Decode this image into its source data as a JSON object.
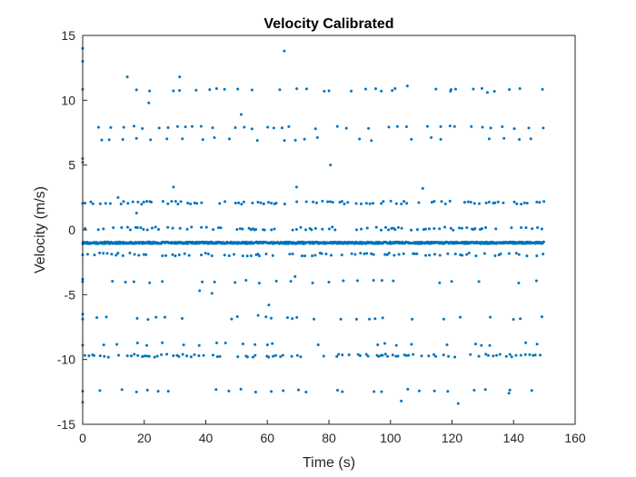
{
  "chart_data": {
    "type": "scatter",
    "title": "Velocity Calibrated",
    "xlabel": "Time (s)",
    "ylabel": "Velocity (m/s)",
    "xlim": [
      0,
      160
    ],
    "ylim": [
      -15,
      15
    ],
    "xticks": [
      0,
      20,
      40,
      60,
      80,
      100,
      120,
      140,
      160
    ],
    "yticks": [
      -15,
      -10,
      -5,
      0,
      5,
      10,
      15
    ],
    "grid": false,
    "marker_color": "#0072BD",
    "series": [
      {
        "x_range": [
          0,
          150
        ],
        "bands": [
          {
            "y": -1.0,
            "density": "dense"
          },
          {
            "y": -9.7,
            "density": "moderate"
          },
          {
            "y": -1.9,
            "density": "moderate"
          },
          {
            "y": 0.1,
            "density": "moderate"
          },
          {
            "y": 2.1,
            "density": "moderate"
          },
          {
            "y": 7.9,
            "density": "sparse"
          },
          {
            "y": -8.8,
            "density": "sparse"
          },
          {
            "y": -12.4,
            "density": "sparse"
          },
          {
            "y": 10.8,
            "density": "sparse"
          },
          {
            "y": 7.0,
            "density": "sparse"
          },
          {
            "y": -4.0,
            "density": "sparse"
          },
          {
            "y": -6.8,
            "density": "sparse"
          }
        ],
        "extra_points": [
          [
            0,
            14.0
          ],
          [
            0,
            13.0
          ],
          [
            0,
            5.5
          ],
          [
            0,
            5.2
          ],
          [
            0,
            -3.8
          ],
          [
            0,
            -6.5
          ],
          [
            0,
            -13.3
          ],
          [
            14.5,
            11.8
          ],
          [
            31.5,
            11.8
          ],
          [
            21.5,
            9.8
          ],
          [
            43.5,
            10.9
          ],
          [
            65.5,
            13.8
          ],
          [
            51.5,
            8.9
          ],
          [
            80.5,
            5.0
          ],
          [
            29.5,
            3.3
          ],
          [
            69.5,
            3.3
          ],
          [
            11.5,
            2.5
          ],
          [
            17.5,
            1.3
          ],
          [
            69.0,
            -3.6
          ],
          [
            60.5,
            -5.8
          ],
          [
            42.0,
            -4.9
          ],
          [
            38.0,
            -4.7
          ],
          [
            103.5,
            -13.2
          ],
          [
            122.0,
            -13.4
          ],
          [
            138.5,
            -12.6
          ],
          [
            131.5,
            10.6
          ],
          [
            105.5,
            11.1
          ],
          [
            78.5,
            10.7
          ],
          [
            119.5,
            10.7
          ],
          [
            101.5,
            10.9
          ],
          [
            110.5,
            3.2
          ],
          [
            57.0,
            -6.6
          ]
        ]
      }
    ]
  }
}
